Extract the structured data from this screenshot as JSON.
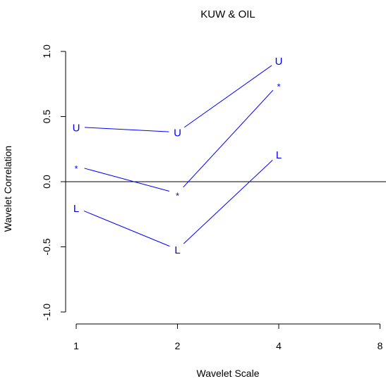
{
  "chart_data": {
    "type": "line",
    "title": "KUW & OIL",
    "xlabel": "Wavelet Scale",
    "ylabel": "Wavelet Correlation",
    "x_scale": "log2",
    "x_ticks": [
      1,
      2,
      4,
      8
    ],
    "x_tick_labels": [
      "1",
      "2",
      "4",
      "8"
    ],
    "y_ticks": [
      -1.0,
      -0.5,
      0.0,
      0.5,
      1.0
    ],
    "y_tick_labels": [
      "-1.0",
      "-0.5",
      "0.0",
      "0.5",
      "1.0"
    ],
    "xlim": [
      1,
      8
    ],
    "ylim": [
      -1.0,
      1.0
    ],
    "reference_line_y": 0.0,
    "grid": false,
    "series": [
      {
        "marker": "U",
        "x": [
          1,
          2,
          4
        ],
        "values": [
          0.42,
          0.38,
          0.93
        ]
      },
      {
        "marker": "*",
        "x": [
          1,
          2,
          4
        ],
        "values": [
          0.12,
          -0.09,
          0.75
        ]
      },
      {
        "marker": "L",
        "x": [
          1,
          2,
          4
        ],
        "values": [
          -0.2,
          -0.52,
          0.21
        ]
      }
    ],
    "colors": {
      "series": "#0000ff",
      "axes": "#000000",
      "text": "#000000"
    }
  }
}
